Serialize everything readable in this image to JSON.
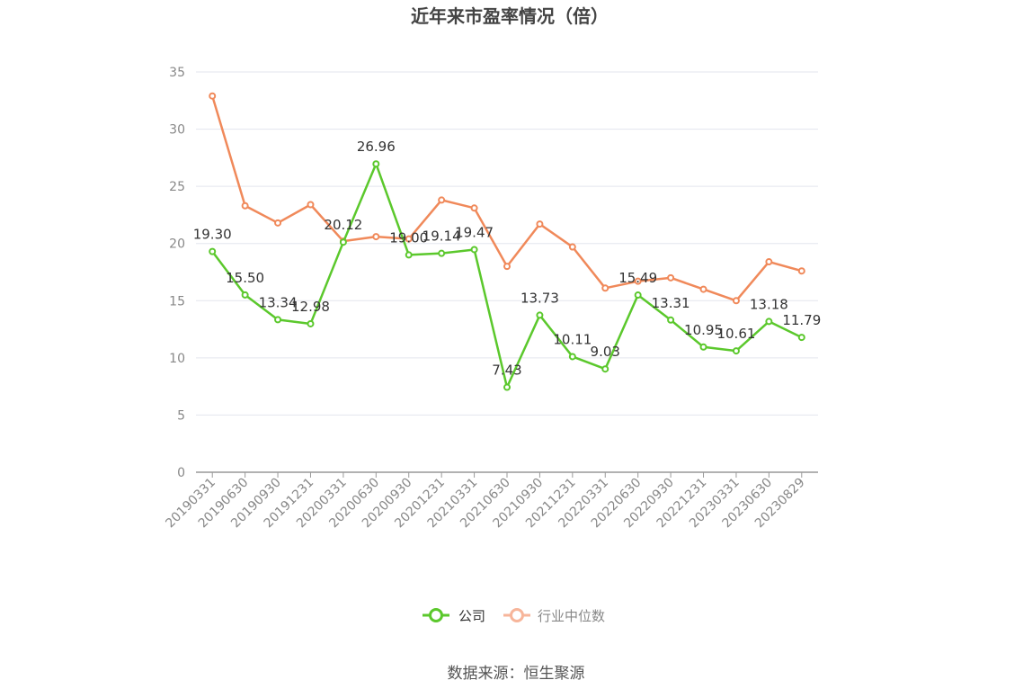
{
  "chart_data": {
    "type": "line",
    "title": "近年来市盈率情况（倍）",
    "xlabel": "",
    "ylabel": "",
    "ylim": [
      0,
      35
    ],
    "yticks": [
      0,
      5,
      10,
      15,
      20,
      25,
      30,
      35
    ],
    "grid": true,
    "legend_position": "bottom",
    "categories": [
      "20190331",
      "20190630",
      "20190930",
      "20191231",
      "20200331",
      "20200630",
      "20200930",
      "20201231",
      "20210331",
      "20210630",
      "20210930",
      "20211231",
      "20220331",
      "20220630",
      "20220930",
      "20221231",
      "20230331",
      "20230630",
      "20230829"
    ],
    "series": [
      {
        "name": "公司",
        "color": "#5bc82c",
        "values": [
          19.3,
          15.5,
          13.34,
          12.98,
          20.12,
          26.96,
          19.0,
          19.14,
          19.47,
          7.43,
          13.73,
          10.11,
          9.03,
          15.49,
          13.31,
          10.95,
          10.61,
          13.18,
          11.79
        ],
        "labels": [
          "19.30",
          "15.50",
          "13.34",
          "12.98",
          "20.12",
          "26.96",
          "19.00",
          "19.14",
          "19.47",
          "7.43",
          "13.73",
          "10.11",
          "9.03",
          "15.49",
          "13.31",
          "10.95",
          "10.61",
          "13.18",
          "11.79"
        ]
      },
      {
        "name": "行业中位数",
        "color": "#f0895a",
        "values": [
          32.9,
          23.3,
          21.8,
          23.4,
          20.2,
          20.6,
          20.4,
          23.8,
          23.1,
          18.0,
          21.7,
          19.7,
          16.1,
          16.7,
          17.0,
          16.0,
          15.0,
          18.4,
          17.6
        ]
      }
    ]
  },
  "legend": {
    "company_label": "公司",
    "industry_label": "行业中位数",
    "industry_color": "#f7b59a"
  },
  "source": "数据来源：恒生聚源"
}
